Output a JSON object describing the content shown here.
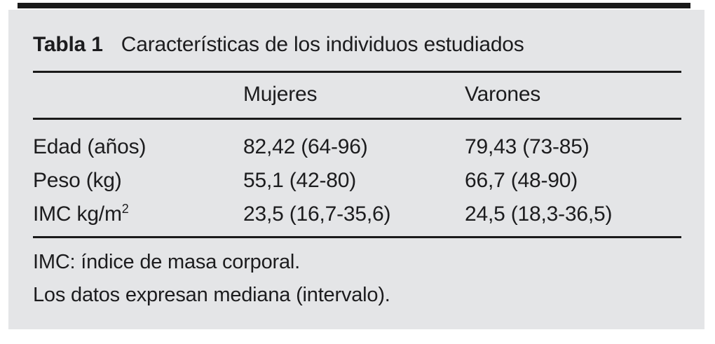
{
  "table": {
    "label": "Tabla 1",
    "caption": "Características de los individuos estudiados",
    "columns": [
      "Mujeres",
      "Varones"
    ],
    "rows": [
      {
        "label": "Edad (años)",
        "label_sup": "",
        "mujeres": "82,42 (64-96)",
        "varones": "79,43 (73-85)"
      },
      {
        "label": "Peso (kg)",
        "label_sup": "",
        "mujeres": "55,1 (42-80)",
        "varones": "66,7 (48-90)"
      },
      {
        "label": "IMC kg/m",
        "label_sup": "2",
        "mujeres": "23,5 (16,7-35,6)",
        "varones": "24,5 (18,3-36,5)"
      }
    ],
    "footnotes": [
      "IMC: índice de masa corporal.",
      "Los datos expresan mediana (intervalo)."
    ]
  },
  "colors": {
    "panel_background": "#e4e5e7",
    "text": "#1c1c1e",
    "rule": "#1a1a1a"
  },
  "chart_data": {
    "type": "table",
    "title": "Tabla 1 Características de los individuos estudiados",
    "columns": [
      "",
      "Mujeres",
      "Varones"
    ],
    "rows": [
      [
        "Edad (años)",
        "82,42 (64-96)",
        "79,43 (73-85)"
      ],
      [
        "Peso (kg)",
        "55,1 (42-80)",
        "66,7 (48-90)"
      ],
      [
        "IMC kg/m2",
        "23,5 (16,7-35,6)",
        "24,5 (18,3-36,5)"
      ]
    ],
    "footnotes": [
      "IMC: índice de masa corporal.",
      "Los datos expresan mediana (intervalo)."
    ]
  }
}
